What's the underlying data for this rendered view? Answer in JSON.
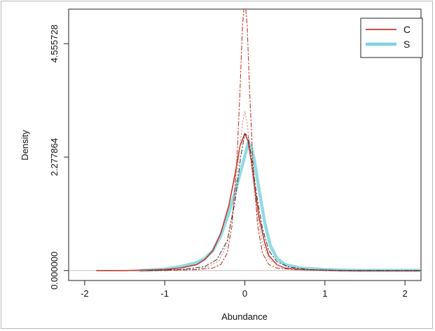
{
  "chart_data": {
    "type": "line",
    "xlabel": "Abundance",
    "ylabel": "Density",
    "xlim": [
      -2.2,
      2.2
    ],
    "ylim": [
      -0.2,
      5.25
    ],
    "x_ticks": [
      {
        "value": -2,
        "label": "-2"
      },
      {
        "value": -1,
        "label": "-1"
      },
      {
        "value": 0,
        "label": "0"
      },
      {
        "value": 1,
        "label": "1"
      },
      {
        "value": 2,
        "label": "2"
      }
    ],
    "y_ticks": [
      {
        "value": 0,
        "label": "0.000000"
      },
      {
        "value": 2.277864,
        "label": "2.277864"
      },
      {
        "value": 4.555728,
        "label": "4.555728"
      }
    ],
    "legend": {
      "position": "top-right",
      "entries": [
        {
          "label": "C",
          "color": "#c0392b"
        },
        {
          "label": "S",
          "color": "#7fd3df"
        }
      ]
    },
    "series": [
      {
        "name": "C",
        "color": "#c0392b",
        "style": "solid",
        "width": 1.6,
        "x": [
          -1.85,
          -1.5,
          -1.2,
          -1.0,
          -0.8,
          -0.6,
          -0.5,
          -0.4,
          -0.3,
          -0.2,
          -0.12,
          -0.06,
          0.0,
          0.04,
          0.08,
          0.12,
          0.18,
          0.25,
          0.3,
          0.4,
          0.5,
          0.7,
          0.9,
          1.2,
          1.6,
          2.2
        ],
        "y": [
          0.0,
          0.0,
          0.01,
          0.02,
          0.05,
          0.12,
          0.22,
          0.4,
          0.75,
          1.3,
          1.95,
          2.5,
          2.75,
          2.6,
          2.2,
          1.7,
          1.05,
          0.55,
          0.3,
          0.12,
          0.05,
          0.02,
          0.01,
          0.0,
          0.0,
          0.0
        ]
      },
      {
        "name": "",
        "color": "#c0392b",
        "style": "dashdot",
        "width": 1.1,
        "x": [
          -1.6,
          -1.0,
          -0.6,
          -0.4,
          -0.3,
          -0.22,
          -0.16,
          -0.1,
          -0.06,
          -0.03,
          0.0,
          0.03,
          0.06,
          0.1,
          0.16,
          0.22,
          0.3,
          0.4,
          0.6,
          1.0,
          1.6,
          2.2
        ],
        "y": [
          0.0,
          0.0,
          0.02,
          0.05,
          0.12,
          0.35,
          0.9,
          2.2,
          3.6,
          4.9,
          5.5,
          4.9,
          3.6,
          2.2,
          0.9,
          0.35,
          0.12,
          0.05,
          0.02,
          0.0,
          0.0,
          0.0
        ]
      },
      {
        "name": "",
        "color": "#d98880",
        "style": "dotted",
        "width": 1.1,
        "x": [
          -1.6,
          -1.0,
          -0.6,
          -0.45,
          -0.32,
          -0.22,
          -0.14,
          -0.08,
          -0.03,
          0.0,
          0.03,
          0.08,
          0.14,
          0.22,
          0.32,
          0.45,
          0.6,
          1.0,
          1.6,
          2.2
        ],
        "y": [
          0.0,
          0.0,
          0.03,
          0.08,
          0.2,
          0.55,
          1.3,
          2.2,
          2.95,
          3.2,
          2.95,
          2.2,
          1.3,
          0.55,
          0.2,
          0.08,
          0.03,
          0.0,
          0.0,
          0.0
        ]
      },
      {
        "name": "S",
        "color": "#7fd3df",
        "style": "solid",
        "width": 4.5,
        "x": [
          -1.3,
          -1.0,
          -0.8,
          -0.6,
          -0.5,
          -0.4,
          -0.3,
          -0.2,
          -0.1,
          0.0,
          0.04,
          0.08,
          0.12,
          0.18,
          0.25,
          0.32,
          0.4,
          0.5,
          0.7,
          1.0,
          1.4,
          2.2
        ],
        "y": [
          0.0,
          0.03,
          0.08,
          0.16,
          0.24,
          0.4,
          0.7,
          1.15,
          1.7,
          2.3,
          2.55,
          2.5,
          2.2,
          1.6,
          0.95,
          0.5,
          0.25,
          0.12,
          0.05,
          0.02,
          0.0,
          0.0
        ]
      },
      {
        "name": "",
        "color": "#2e2e2e",
        "style": "dashdot",
        "width": 1.0,
        "x": [
          -1.2,
          -0.8,
          -0.5,
          -0.35,
          -0.22,
          -0.12,
          -0.05,
          0.0,
          0.04,
          0.09,
          0.15,
          0.22,
          0.3,
          0.4,
          0.55,
          0.8,
          1.2,
          2.2
        ],
        "y": [
          0.0,
          0.02,
          0.08,
          0.22,
          0.6,
          1.4,
          2.3,
          2.75,
          2.7,
          2.2,
          1.5,
          0.85,
          0.4,
          0.18,
          0.07,
          0.02,
          0.0,
          0.0
        ]
      }
    ]
  }
}
